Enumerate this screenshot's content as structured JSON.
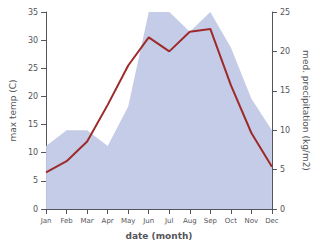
{
  "chart_data": {
    "type": "line",
    "xlabel": "date (month)",
    "ylabel": "max temp (C)",
    "y2label": "med. precipitation (kg/m2)",
    "categories": [
      "Jan",
      "Feb",
      "Mar",
      "Apr",
      "May",
      "Jun",
      "Jul",
      "Aug",
      "Sep",
      "Oct",
      "Nov",
      "Dec"
    ],
    "series": [
      {
        "type": "area",
        "axis": "y2",
        "color": "#c5cce8",
        "values": [
          8.0,
          10.0,
          10.0,
          8.0,
          13.0,
          25.0,
          25.0,
          22.5,
          25.0,
          20.5,
          14.0,
          10.0
        ]
      },
      {
        "type": "line",
        "axis": "y",
        "color": "#9e2a2a",
        "values": [
          6.5,
          8.5,
          12.0,
          18.5,
          25.5,
          30.5,
          28.0,
          31.5,
          32.0,
          22.0,
          13.5,
          7.5
        ]
      }
    ],
    "ylim": [
      0,
      35
    ],
    "yticks": [
      0,
      5,
      10,
      15,
      20,
      25,
      30,
      35
    ],
    "y2lim": [
      0,
      25
    ],
    "y2ticks": [
      0,
      5,
      10,
      15,
      20,
      25
    ],
    "grid": false
  }
}
